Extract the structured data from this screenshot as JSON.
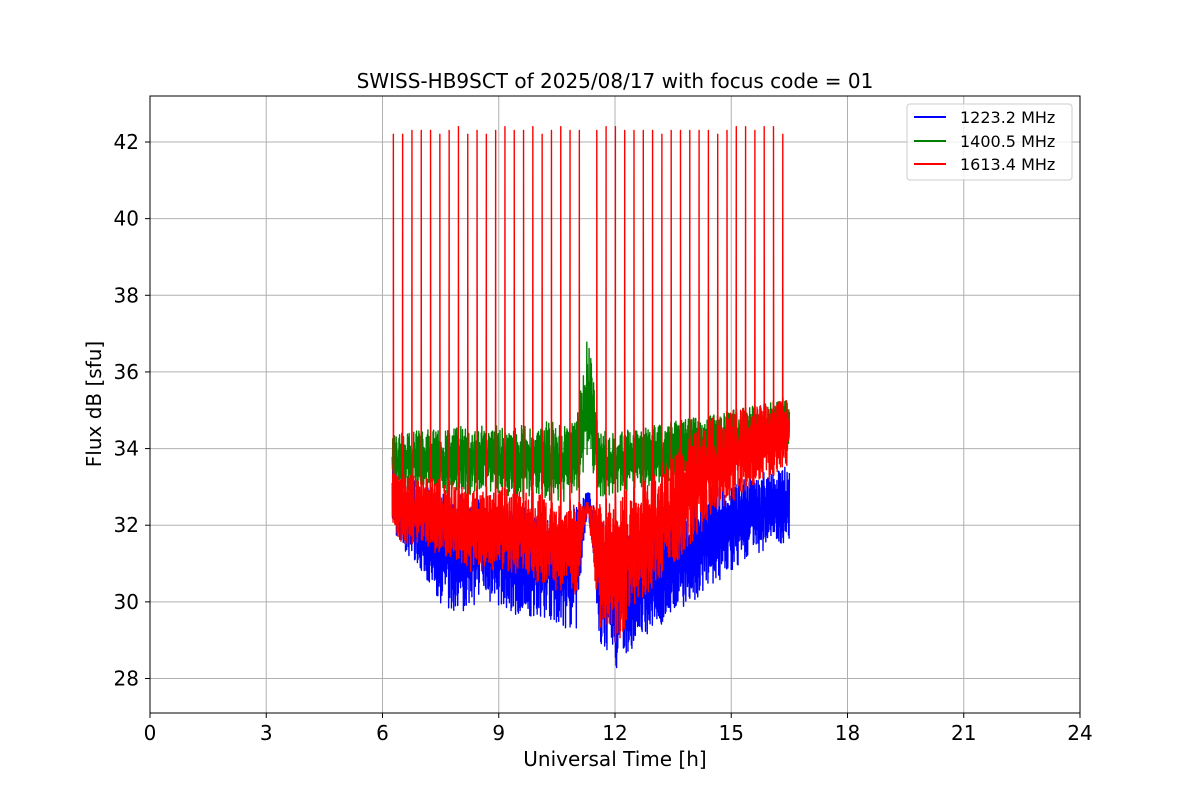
{
  "chart_data": {
    "type": "line",
    "title": "SWISS-HB9SCT of 2025/08/17 with focus code = 01",
    "xlabel": "Universal Time [h]",
    "ylabel": "Flux dB [sfu]",
    "xlim": [
      0,
      24
    ],
    "ylim": [
      27.1,
      43.2
    ],
    "xticks": [
      0,
      3,
      6,
      9,
      12,
      15,
      18,
      21,
      24
    ],
    "yticks": [
      28,
      30,
      32,
      34,
      36,
      38,
      40,
      42
    ],
    "grid": true,
    "legend_position": "top-right",
    "series": [
      {
        "name": "1223.2 MHz",
        "color": "#0000ff",
        "x": [
          6.25,
          6.5,
          7.0,
          7.5,
          8.0,
          8.5,
          9.0,
          9.5,
          10.0,
          10.5,
          11.0,
          11.3,
          11.6,
          12.0,
          12.5,
          13.0,
          13.5,
          14.0,
          14.5,
          15.0,
          15.5,
          16.0,
          16.5
        ],
        "low": [
          32.0,
          31.4,
          30.8,
          29.9,
          29.7,
          30.0,
          29.9,
          29.6,
          29.5,
          29.4,
          29.2,
          32.5,
          29.0,
          28.2,
          28.8,
          29.2,
          29.7,
          30.0,
          30.4,
          30.8,
          31.2,
          31.4,
          31.6
        ],
        "high": [
          34.0,
          33.4,
          33.1,
          32.9,
          32.8,
          32.7,
          32.6,
          32.5,
          32.4,
          32.3,
          32.5,
          33.0,
          32.2,
          31.8,
          31.8,
          32.0,
          32.3,
          32.8,
          33.0,
          33.2,
          33.3,
          33.4,
          33.6
        ]
      },
      {
        "name": "1400.5 MHz",
        "color": "#008000",
        "x": [
          6.25,
          6.5,
          7.0,
          7.5,
          8.0,
          8.5,
          9.0,
          9.5,
          10.0,
          10.5,
          11.0,
          11.3,
          11.6,
          12.0,
          12.5,
          13.0,
          13.5,
          14.0,
          14.5,
          15.0,
          15.5,
          16.0,
          16.5
        ],
        "low": [
          32.8,
          32.9,
          32.9,
          32.8,
          32.8,
          32.8,
          32.8,
          32.7,
          32.7,
          32.6,
          32.6,
          33.8,
          32.7,
          32.8,
          32.9,
          33.0,
          33.2,
          33.4,
          33.5,
          33.6,
          33.7,
          33.8,
          33.9
        ],
        "high": [
          34.4,
          34.4,
          34.5,
          34.5,
          34.6,
          34.6,
          34.6,
          34.7,
          34.7,
          34.7,
          34.7,
          37.0,
          34.5,
          34.5,
          34.5,
          34.6,
          34.7,
          34.8,
          34.9,
          35.0,
          35.1,
          35.2,
          35.3
        ]
      },
      {
        "name": "1613.4 MHz",
        "color": "#ff0000",
        "x": [
          6.25,
          6.5,
          7.0,
          7.5,
          8.0,
          8.5,
          9.0,
          9.5,
          10.0,
          10.5,
          11.0,
          11.3,
          11.6,
          12.0,
          12.5,
          13.0,
          13.5,
          14.0,
          14.5,
          15.0,
          15.5,
          16.0,
          16.5
        ],
        "low": [
          31.8,
          31.4,
          31.5,
          31.2,
          31.0,
          30.6,
          30.9,
          30.7,
          30.5,
          30.3,
          30.2,
          32.4,
          29.3,
          28.8,
          29.8,
          30.4,
          30.9,
          31.5,
          32.2,
          32.6,
          32.9,
          33.2,
          33.5
        ],
        "high": [
          33.6,
          33.4,
          33.3,
          33.2,
          33.1,
          33.0,
          33.0,
          32.9,
          32.9,
          32.8,
          32.6,
          32.6,
          32.6,
          32.8,
          33.0,
          33.4,
          33.9,
          34.4,
          34.8,
          35.0,
          35.1,
          35.2,
          35.4
        ],
        "peak_times": [
          6.28,
          6.52,
          6.76,
          7.0,
          7.24,
          7.48,
          7.72,
          7.96,
          8.2,
          8.44,
          8.68,
          8.92,
          9.16,
          9.4,
          9.64,
          9.88,
          10.12,
          10.36,
          10.6,
          10.84,
          11.08,
          11.53,
          11.77,
          12.01,
          12.25,
          12.49,
          12.73,
          12.97,
          13.21,
          13.45,
          13.69,
          13.93,
          14.17,
          14.41,
          14.65,
          14.89,
          15.13,
          15.37,
          15.61,
          15.85,
          16.09,
          16.33
        ],
        "peak_values": [
          42.2,
          42.2,
          42.3,
          42.3,
          42.3,
          42.2,
          42.3,
          42.4,
          42.2,
          42.3,
          42.2,
          42.3,
          42.4,
          42.3,
          42.3,
          42.4,
          42.2,
          42.3,
          42.4,
          42.3,
          42.3,
          42.3,
          42.4,
          42.4,
          42.3,
          42.3,
          42.3,
          42.3,
          42.2,
          42.3,
          42.3,
          42.3,
          42.3,
          42.3,
          42.2,
          42.3,
          42.4,
          42.4,
          42.3,
          42.4,
          42.4,
          42.2
        ]
      }
    ]
  }
}
